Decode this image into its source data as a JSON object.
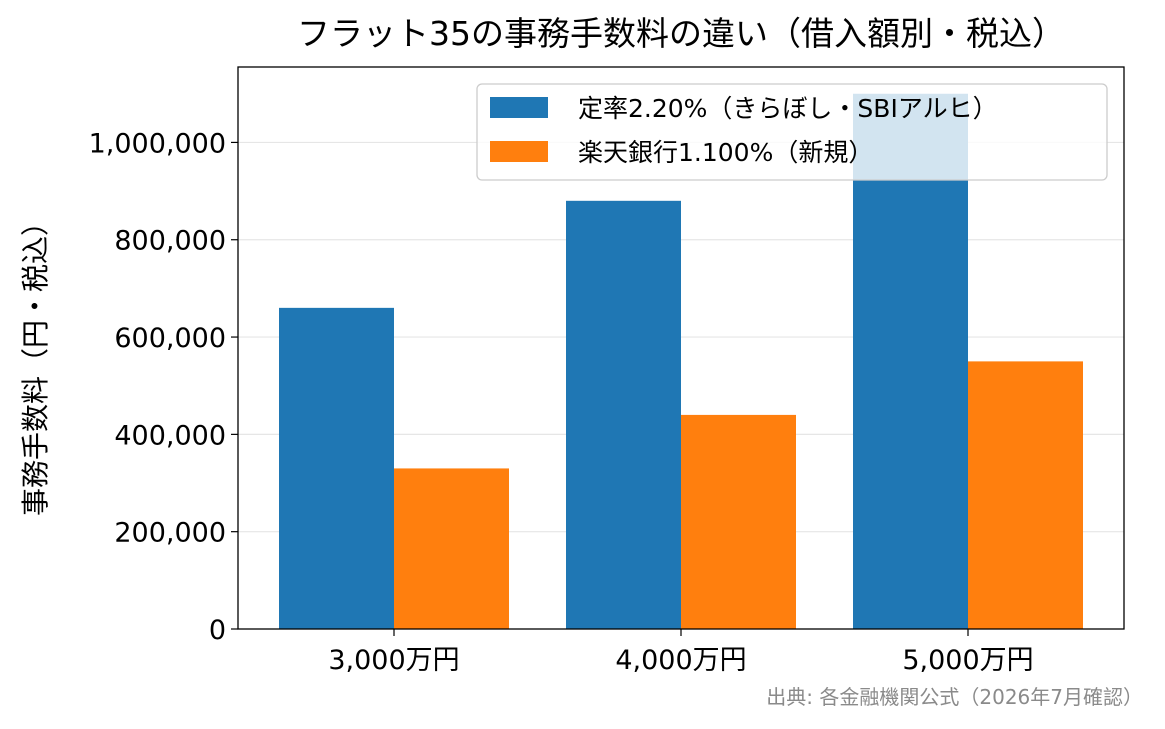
{
  "chart_data": {
    "type": "bar",
    "title": "フラット35の事務手数料の違い（借入額別・税込）",
    "xlabel": "",
    "ylabel": "事務手数料（円・税込）",
    "categories": [
      "3,000万円",
      "4,000万円",
      "5,000万円"
    ],
    "series": [
      {
        "name": "定率2.20%（きらぼし・SBIアルヒ）",
        "color": "#1f77b4",
        "values": [
          660000,
          880000,
          1100000
        ]
      },
      {
        "name": "楽天銀行1.100%（新規）",
        "color": "#ff7f0e",
        "values": [
          330000,
          440000,
          550000
        ]
      }
    ],
    "ylim": [
      0,
      1155000
    ],
    "yticks": [
      0,
      200000,
      400000,
      600000,
      800000,
      1000000
    ],
    "ytick_labels": [
      "0",
      "200,000",
      "400,000",
      "600,000",
      "800,000",
      "1,000,000"
    ],
    "grid": "horizontal",
    "legend_position": "top-right",
    "source_note": "出典: 各金融機関公式（2026年7月確認）"
  }
}
